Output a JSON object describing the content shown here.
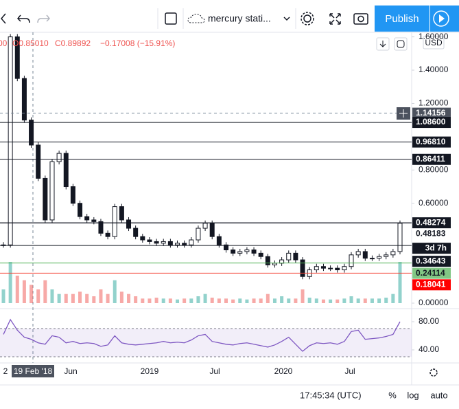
{
  "toolbar": {
    "symbol": "mercury stati...",
    "publish": "Publish"
  },
  "legend": {
    "prefix": "00",
    "open": "O0.85010",
    "close": "C0.89892",
    "change": "−0.17008 (−15.91%)"
  },
  "price_axis": {
    "currency": "USD",
    "ylim": [
      0,
      1.615
    ],
    "ticks": [
      {
        "value": 1.6,
        "label": "1.60000"
      },
      {
        "value": 1.4,
        "label": "1.40000"
      },
      {
        "value": 1.2,
        "label": "1.20000"
      },
      {
        "value": 0.8,
        "label": "0.80000"
      },
      {
        "value": 0.6,
        "label": "0.60000"
      },
      {
        "value": 0,
        "label": "0.00000"
      }
    ]
  },
  "levels": [
    {
      "value": 1.14156,
      "label": "1.14156"
    },
    {
      "value": 1.086,
      "label": "1.08600"
    },
    {
      "value": 0.9681,
      "label": "0.96810"
    },
    {
      "value": 0.86411,
      "label": "0.86411"
    },
    {
      "value": 0.48274,
      "label": "0.48274"
    },
    {
      "value": 0.48183,
      "label": "0.48183"
    },
    {
      "value": 0.34643,
      "label": "0.34643"
    },
    {
      "value": 0.24114,
      "label": "0.24114"
    },
    {
      "value": 0.18041,
      "label": "0.18041"
    }
  ],
  "countdown": "3d 7h",
  "closes": [
    0.35,
    1.6,
    1.35,
    1.1,
    0.95,
    0.75,
    0.5,
    0.85,
    0.9,
    0.7,
    0.6,
    0.52,
    0.5,
    0.49,
    0.42,
    0.4,
    0.58,
    0.5,
    0.45,
    0.4,
    0.38,
    0.37,
    0.36,
    0.37,
    0.35,
    0.36,
    0.35,
    0.38,
    0.45,
    0.48,
    0.4,
    0.35,
    0.32,
    0.3,
    0.31,
    0.32,
    0.3,
    0.28,
    0.23,
    0.24,
    0.26,
    0.3,
    0.26,
    0.16,
    0.2,
    0.22,
    0.21,
    0.21,
    0.2,
    0.22,
    0.29,
    0.31,
    0.27,
    0.27,
    0.28,
    0.29,
    0.31,
    0.48
  ],
  "volumes": [
    0.3,
    0.9,
    0.6,
    0.5,
    0.4,
    0.3,
    0.5,
    0.3,
    0.2,
    0.2,
    0.2,
    0.25,
    0.2,
    0.15,
    0.3,
    0.2,
    0.5,
    0.25,
    0.2,
    0.15,
    0.1,
    0.1,
    0.12,
    0.1,
    0.1,
    0.08,
    0.1,
    0.1,
    0.15,
    0.2,
    0.12,
    0.1,
    0.1,
    0.08,
    0.1,
    0.08,
    0.1,
    0.1,
    0.2,
    0.1,
    0.15,
    0.1,
    0.1,
    0.3,
    0.12,
    0.1,
    0.08,
    0.08,
    0.08,
    0.1,
    0.15,
    0.1,
    0.1,
    0.1,
    0.1,
    0.12,
    0.2,
    0.9
  ],
  "rsi": {
    "ticks": [
      {
        "value": 80,
        "label": "80.00"
      },
      {
        "value": 40,
        "label": "40.00"
      }
    ],
    "values": [
      62,
      83,
      68,
      58,
      55,
      50,
      48,
      60,
      58,
      50,
      52,
      49,
      50,
      49,
      45,
      47,
      60,
      50,
      48,
      47,
      48,
      49,
      50,
      52,
      50,
      51,
      50,
      54,
      60,
      62,
      52,
      50,
      48,
      47,
      49,
      50,
      48,
      46,
      44,
      47,
      52,
      58,
      48,
      38,
      46,
      50,
      49,
      50,
      48,
      52,
      66,
      68,
      55,
      56,
      57,
      59,
      62,
      80
    ]
  },
  "time_axis": {
    "labels": [
      "2",
      "19 Feb '18",
      "Jun",
      "2019",
      "Jul",
      "2020",
      "Jul"
    ]
  },
  "status_bar": {
    "time": "17:45:34 (UTC)",
    "percent": "%",
    "log": "log",
    "auto": "auto"
  }
}
